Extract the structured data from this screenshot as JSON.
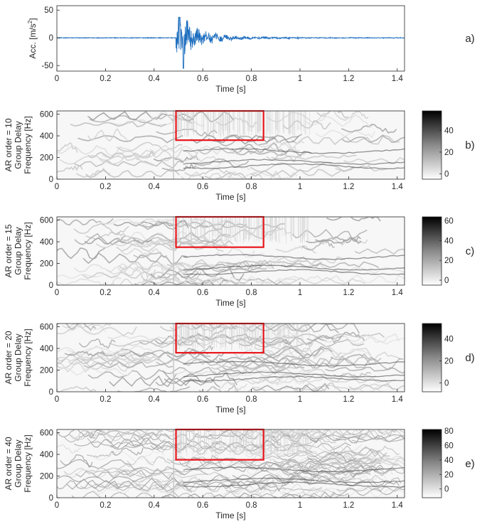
{
  "chart_data": [
    {
      "type": "line",
      "panel_label": "a)",
      "xlabel": "Time [s]",
      "ylabel": "Acc. [m/s",
      "ylabel_sup": "2",
      "ylabel_end": "]",
      "xlim": [
        0,
        1.43
      ],
      "ylim": [
        -60,
        58
      ],
      "xticks": [
        0,
        0.2,
        0.4,
        0.6,
        0.8,
        1,
        1.2,
        1.4
      ],
      "xtick_labels": [
        "0",
        "0.2",
        "0.4",
        "0.6",
        "0.8",
        "1",
        "1.2",
        "1.4"
      ],
      "yticks": [
        50,
        0,
        -50
      ],
      "ytick_labels": [
        "50",
        "0",
        "-50"
      ],
      "series_color": "#1f6fbf",
      "signal": {
        "onset_time": 0.49,
        "peak_positive": 37,
        "peak_negative": -55,
        "decay_end_time": 0.85
      }
    },
    {
      "type": "heatmap",
      "panel_label": "b)",
      "ylabel_lines": [
        "AR order = 10",
        "Group Delay",
        "Frequency [Hz]"
      ],
      "xlabel": "Time [s]",
      "xlim": [
        0,
        1.43
      ],
      "ylim": [
        0,
        630
      ],
      "xticks": [
        0,
        0.2,
        0.4,
        0.6,
        0.8,
        1,
        1.2,
        1.4
      ],
      "xtick_labels": [
        "0",
        "0.2",
        "0.4",
        "0.6",
        "0.8",
        "1",
        "1.2",
        "1.4"
      ],
      "yticks": [
        0,
        200,
        400,
        600
      ],
      "ytick_labels": [
        "0",
        "200",
        "400",
        "600"
      ],
      "colorbar_ticks": [
        0,
        20,
        40
      ],
      "colorbar_tick_labels": [
        "0",
        "20",
        "40"
      ],
      "colorbar_range": [
        -5,
        58
      ],
      "highlight_box": {
        "x": [
          0.49,
          0.85
        ],
        "y": [
          360,
          630
        ],
        "color": "#e8161b"
      },
      "colormap": "gray-reversed"
    },
    {
      "type": "heatmap",
      "panel_label": "c)",
      "ylabel_lines": [
        "AR order = 15",
        "Group Delay",
        "Frequency [Hz]"
      ],
      "xlabel": "Time [s]",
      "xlim": [
        0,
        1.43
      ],
      "ylim": [
        0,
        630
      ],
      "xticks": [
        0,
        0.2,
        0.4,
        0.6,
        0.8,
        1,
        1.2,
        1.4
      ],
      "xtick_labels": [
        "0",
        "0.2",
        "0.4",
        "0.6",
        "0.8",
        "1",
        "1.2",
        "1.4"
      ],
      "yticks": [
        0,
        200,
        400,
        600
      ],
      "ytick_labels": [
        "0",
        "200",
        "400",
        "600"
      ],
      "colorbar_ticks": [
        0,
        20,
        40,
        60
      ],
      "colorbar_tick_labels": [
        "0",
        "20",
        "40",
        "60"
      ],
      "colorbar_range": [
        -5,
        64
      ],
      "highlight_box": {
        "x": [
          0.49,
          0.85
        ],
        "y": [
          350,
          630
        ],
        "color": "#e8161b"
      },
      "colormap": "gray-reversed"
    },
    {
      "type": "heatmap",
      "panel_label": "d)",
      "ylabel_lines": [
        "AR order = 20",
        "Group Delay",
        "Frequency [Hz]"
      ],
      "xlabel": "Time [s]",
      "xlim": [
        0,
        1.43
      ],
      "ylim": [
        0,
        630
      ],
      "xticks": [
        0,
        0.2,
        0.4,
        0.6,
        0.8,
        1,
        1.2,
        1.4
      ],
      "xtick_labels": [
        "0",
        "0.2",
        "0.4",
        "0.6",
        "0.8",
        "1",
        "1.2",
        "1.4"
      ],
      "yticks": [
        0,
        200,
        400,
        600
      ],
      "ytick_labels": [
        "0",
        "200",
        "400",
        "600"
      ],
      "colorbar_ticks": [
        0,
        20,
        40
      ],
      "colorbar_tick_labels": [
        "0",
        "20",
        "40"
      ],
      "colorbar_range": [
        -8,
        54
      ],
      "highlight_box": {
        "x": [
          0.49,
          0.85
        ],
        "y": [
          360,
          630
        ],
        "color": "#e8161b"
      },
      "colormap": "gray-reversed"
    },
    {
      "type": "heatmap",
      "panel_label": "e)",
      "ylabel_lines": [
        "AR order = 40",
        "Group Delay",
        "Frequency [Hz]"
      ],
      "xlabel": "Time [s]",
      "xlim": [
        0,
        1.43
      ],
      "ylim": [
        0,
        630
      ],
      "xticks": [
        0,
        0.2,
        0.4,
        0.6,
        0.8,
        1,
        1.2,
        1.4
      ],
      "xtick_labels": [
        "0",
        "0.2",
        "0.4",
        "0.6",
        "0.8",
        "1",
        "1.2",
        "1.4"
      ],
      "yticks": [
        0,
        200,
        400,
        600
      ],
      "ytick_labels": [
        "0",
        "200",
        "400",
        "600"
      ],
      "colorbar_ticks": [
        0,
        20,
        40,
        60,
        80
      ],
      "colorbar_tick_labels": [
        "0",
        "20",
        "40",
        "60",
        "80"
      ],
      "colorbar_range": [
        -12,
        82
      ],
      "highlight_box": {
        "x": [
          0.49,
          0.85
        ],
        "y": [
          350,
          630
        ],
        "color": "#e8161b"
      },
      "colormap": "gray-reversed"
    }
  ]
}
